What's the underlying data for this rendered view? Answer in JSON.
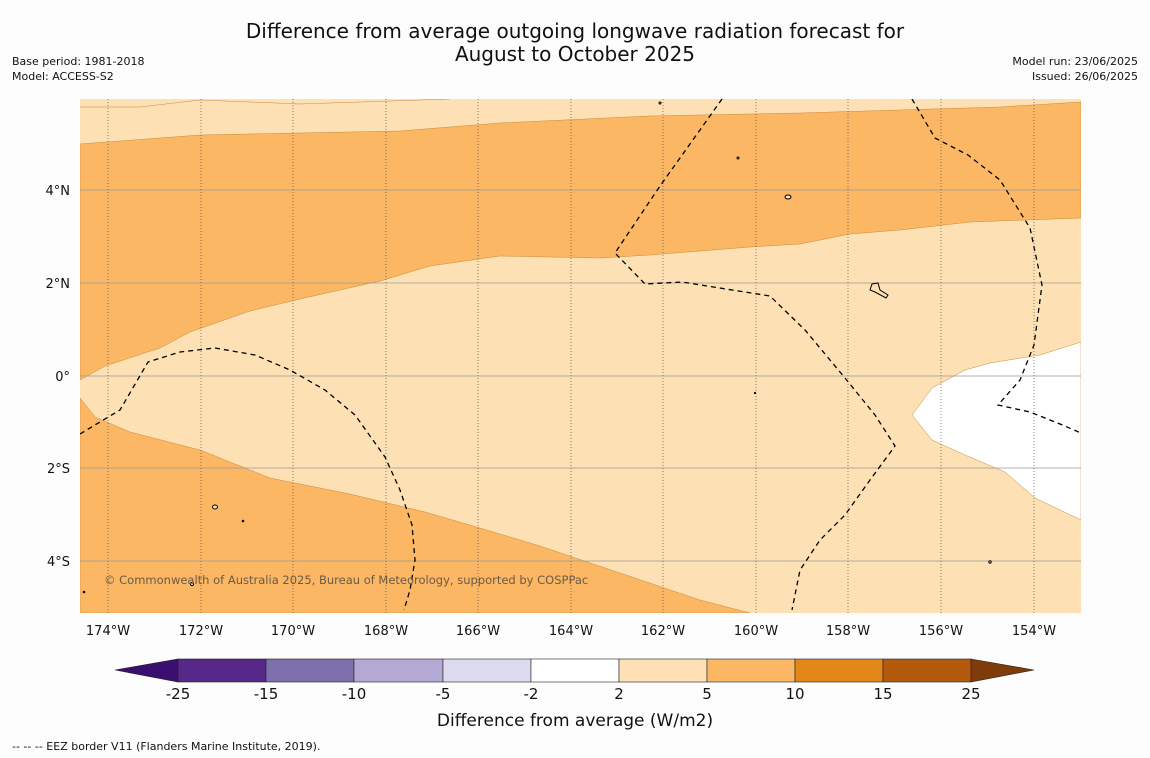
{
  "header": {
    "title_line1": "Difference from average outgoing longwave radiation forecast for",
    "title_line2": "August to October 2025",
    "base_period": "Base period: 1981-2018",
    "model": "Model: ACCESS-S2",
    "model_run": "Model run: 23/06/2025",
    "issued": "Issued: 26/06/2025"
  },
  "map": {
    "lon_ticks": [
      "174°W",
      "172°W",
      "170°W",
      "168°W",
      "166°W",
      "164°W",
      "162°W",
      "160°W",
      "158°W",
      "156°W",
      "154°W"
    ],
    "lat_ticks": [
      "4°N",
      "2°N",
      "0°",
      "2°S",
      "4°S"
    ],
    "copyright": "© Commonwealth of Australia 2025, Bureau of Meteorology, supported by COSPPac",
    "colors": {
      "band_2_5": "#fde0b4",
      "band_5_10": "#fbb764",
      "band_m2_2": "#ffffff"
    }
  },
  "colorbar": {
    "tick_labels": [
      "-25",
      "-15",
      "-10",
      "-5",
      "-2",
      "2",
      "5",
      "10",
      "15",
      "25"
    ],
    "label": "Difference from average (W/m2)",
    "colors": [
      "#3b0f6f",
      "#55288a",
      "#7d6fab",
      "#b3a9d4",
      "#dcdaef",
      "#ffffff",
      "#fde0b4",
      "#fbb764",
      "#e38818",
      "#b35a0d",
      "#7f3c0a"
    ]
  },
  "footnote": "--  --  -- EEZ border V11 (Flanders Marine Institute, 2019)."
}
